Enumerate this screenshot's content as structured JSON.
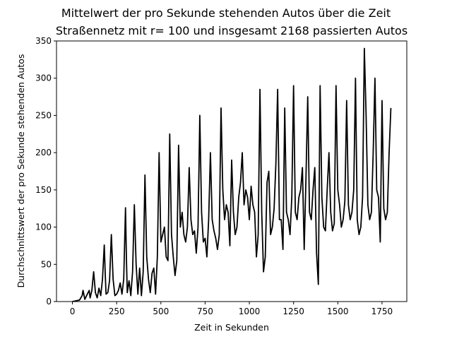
{
  "colors": {
    "line": "#000000",
    "axis": "#000000",
    "background": "#ffffff"
  },
  "chart_data": {
    "type": "line",
    "title": "Mittelwert der pro Sekunde stehenden Autos über die Zeit",
    "subtitle": "Straßennetz mit r= 100 und insgesamt 2168 passierten Autos",
    "xlabel": "Zeit in Sekunden",
    "ylabel": "Durchschnittswert der pro Sekunde stehenden Autos",
    "xlim": [
      -90,
      1890
    ],
    "ylim": [
      0,
      350
    ],
    "xticks": [
      0,
      250,
      500,
      750,
      1000,
      1250,
      1500,
      1750
    ],
    "yticks": [
      0,
      50,
      100,
      150,
      200,
      250,
      300,
      350
    ],
    "grid": false,
    "series": [
      {
        "name": "Mittelwert",
        "x": [
          0,
          40,
          55,
          60,
          70,
          80,
          95,
          100,
          110,
          115,
          120,
          130,
          140,
          150,
          160,
          170,
          180,
          185,
          190,
          200,
          210,
          220,
          230,
          240,
          250,
          260,
          270,
          280,
          290,
          300,
          305,
          310,
          320,
          330,
          340,
          350,
          360,
          370,
          380,
          390,
          400,
          410,
          420,
          430,
          440,
          450,
          460,
          470,
          480,
          490,
          500,
          510,
          520,
          530,
          540,
          550,
          560,
          570,
          580,
          590,
          600,
          610,
          620,
          630,
          640,
          650,
          660,
          670,
          680,
          690,
          700,
          710,
          720,
          730,
          740,
          750,
          760,
          770,
          780,
          790,
          800,
          810,
          820,
          830,
          840,
          850,
          860,
          870,
          880,
          890,
          900,
          910,
          920,
          930,
          940,
          950,
          960,
          970,
          980,
          990,
          1000,
          1010,
          1020,
          1030,
          1040,
          1050,
          1060,
          1070,
          1080,
          1090,
          1100,
          1110,
          1120,
          1130,
          1140,
          1150,
          1160,
          1170,
          1180,
          1190,
          1200,
          1210,
          1220,
          1230,
          1240,
          1250,
          1260,
          1270,
          1280,
          1290,
          1300,
          1310,
          1320,
          1330,
          1340,
          1350,
          1360,
          1370,
          1380,
          1390,
          1400,
          1410,
          1420,
          1430,
          1440,
          1450,
          1460,
          1470,
          1480,
          1490,
          1500,
          1510,
          1520,
          1530,
          1540,
          1550,
          1560,
          1570,
          1580,
          1590,
          1600,
          1610,
          1620,
          1630,
          1640,
          1650,
          1660,
          1670,
          1680,
          1690,
          1700,
          1710,
          1720,
          1730,
          1740,
          1750,
          1760,
          1770,
          1780,
          1790,
          1800
        ],
        "y": [
          0,
          2,
          8,
          15,
          3,
          8,
          15,
          5,
          15,
          28,
          40,
          12,
          5,
          18,
          8,
          30,
          76,
          40,
          10,
          12,
          28,
          90,
          30,
          8,
          10,
          15,
          25,
          10,
          30,
          126,
          60,
          12,
          28,
          8,
          40,
          130,
          50,
          10,
          45,
          8,
          40,
          170,
          60,
          30,
          12,
          38,
          45,
          10,
          60,
          200,
          80,
          90,
          100,
          60,
          55,
          225,
          90,
          60,
          35,
          55,
          210,
          100,
          120,
          90,
          80,
          100,
          180,
          110,
          90,
          95,
          65,
          100,
          250,
          120,
          80,
          85,
          60,
          110,
          200,
          110,
          95,
          85,
          70,
          90,
          260,
          150,
          110,
          130,
          120,
          75,
          190,
          120,
          90,
          100,
          140,
          160,
          200,
          130,
          150,
          140,
          110,
          155,
          130,
          120,
          60,
          90,
          285,
          120,
          40,
          60,
          160,
          175,
          90,
          100,
          125,
          185,
          285,
          110,
          110,
          70,
          260,
          120,
          110,
          90,
          140,
          290,
          120,
          110,
          140,
          150,
          180,
          70,
          165,
          275,
          120,
          110,
          150,
          180,
          65,
          23,
          290,
          140,
          100,
          95,
          150,
          200,
          120,
          95,
          105,
          290,
          150,
          130,
          100,
          110,
          135,
          270,
          130,
          110,
          120,
          150,
          300,
          110,
          90,
          100,
          140,
          340,
          250,
          130,
          110,
          120,
          200,
          300,
          150,
          140,
          80,
          270,
          125,
          110,
          120,
          200,
          260
        ]
      }
    ]
  }
}
